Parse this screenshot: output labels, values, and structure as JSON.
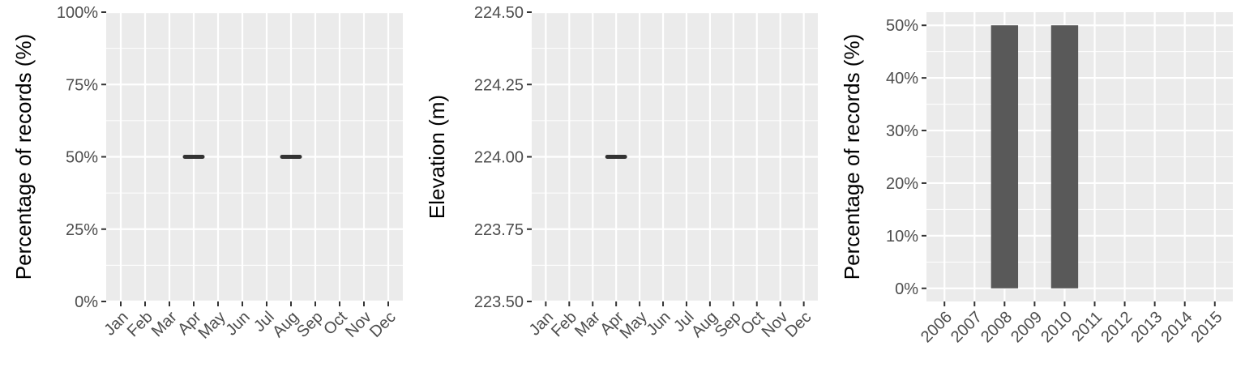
{
  "chart_data": [
    {
      "type": "line",
      "xlabel": "",
      "ylabel": "Percentage of records (%)",
      "categories": [
        "Jan",
        "Feb",
        "Mar",
        "Apr",
        "May",
        "Jun",
        "Jul",
        "Aug",
        "Sep",
        "Oct",
        "Nov",
        "Dec"
      ],
      "ylim": [
        0,
        100
      ],
      "y_ticks": [
        "0%",
        "25%",
        "50%",
        "75%",
        "100%"
      ],
      "y_tick_values": [
        0,
        25,
        50,
        75,
        100
      ],
      "grid": true,
      "series": [
        {
          "values": [
            null,
            null,
            null,
            50,
            null,
            null,
            null,
            50,
            null,
            null,
            null,
            null
          ]
        }
      ]
    },
    {
      "type": "line",
      "xlabel": "",
      "ylabel": "Elevation (m)",
      "categories": [
        "Jan",
        "Feb",
        "Mar",
        "Apr",
        "May",
        "Jun",
        "Jul",
        "Aug",
        "Sep",
        "Oct",
        "Nov",
        "Dec"
      ],
      "ylim": [
        223.5,
        224.5
      ],
      "y_ticks": [
        "223.50",
        "223.75",
        "224.00",
        "224.25",
        "224.50"
      ],
      "y_tick_values": [
        223.5,
        223.75,
        224.0,
        224.25,
        224.5
      ],
      "grid": true,
      "series": [
        {
          "values": [
            null,
            null,
            null,
            224.0,
            null,
            null,
            null,
            null,
            null,
            null,
            null,
            null
          ]
        }
      ]
    },
    {
      "type": "bar",
      "xlabel": "",
      "ylabel": "Percentage of records (%)",
      "categories": [
        "2006",
        "2007",
        "2008",
        "2009",
        "2010",
        "2011",
        "2012",
        "2013",
        "2014",
        "2015"
      ],
      "values": [
        0,
        0,
        50,
        0,
        50,
        0,
        0,
        0,
        0,
        0
      ],
      "ylim": [
        -2.5,
        52.5
      ],
      "y_ticks": [
        "0%",
        "10%",
        "20%",
        "30%",
        "40%",
        "50%"
      ],
      "y_tick_values": [
        0,
        10,
        20,
        30,
        40,
        50
      ],
      "grid": true,
      "colors": {
        "bar": "#595959"
      }
    }
  ],
  "colors": {
    "panel_bg": "#ebebeb",
    "grid": "#ffffff",
    "mark": "#333333",
    "tick": "#333333"
  }
}
